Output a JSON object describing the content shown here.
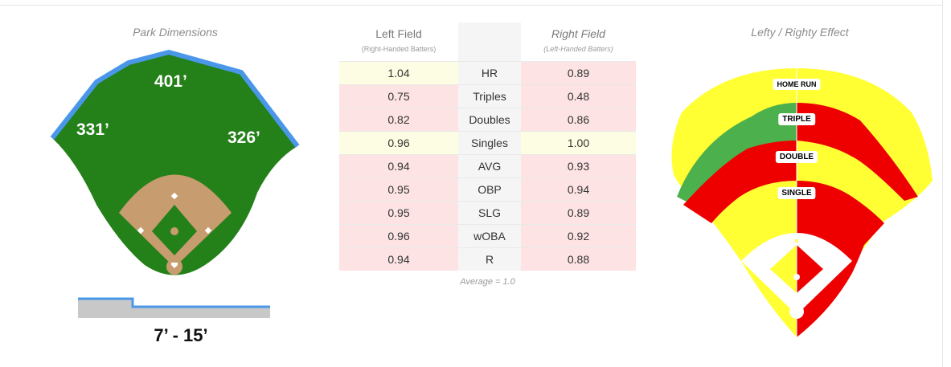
{
  "park": {
    "title": "Park Dimensions",
    "left_field": "331’",
    "center_field": "401’",
    "right_field": "326’",
    "wall_height": "7’ - 15’"
  },
  "table": {
    "left_header": "Left Field",
    "left_subheader": "(Right-Handed Batters)",
    "right_header": "Right Field",
    "right_subheader": "(Left-Handed Batters)",
    "rows": [
      {
        "left": "1.04",
        "stat": "HR",
        "right": "0.89",
        "left_tone": "yellow",
        "right_tone": "pink"
      },
      {
        "left": "0.75",
        "stat": "Triples",
        "right": "0.48",
        "left_tone": "pink",
        "right_tone": "pink"
      },
      {
        "left": "0.82",
        "stat": "Doubles",
        "right": "0.86",
        "left_tone": "pink",
        "right_tone": "pink"
      },
      {
        "left": "0.96",
        "stat": "Singles",
        "right": "1.00",
        "left_tone": "yellow",
        "right_tone": "yellow"
      },
      {
        "left": "0.94",
        "stat": "AVG",
        "right": "0.93",
        "left_tone": "pink",
        "right_tone": "pink"
      },
      {
        "left": "0.95",
        "stat": "OBP",
        "right": "0.94",
        "left_tone": "pink",
        "right_tone": "pink"
      },
      {
        "left": "0.95",
        "stat": "SLG",
        "right": "0.89",
        "left_tone": "pink",
        "right_tone": "pink"
      },
      {
        "left": "0.96",
        "stat": "wOBA",
        "right": "0.92",
        "left_tone": "pink",
        "right_tone": "pink"
      },
      {
        "left": "0.94",
        "stat": "R",
        "right": "0.88",
        "left_tone": "pink",
        "right_tone": "pink"
      }
    ],
    "footnote": "Average = 1.0"
  },
  "effect": {
    "title": "Lefty / Righty Effect",
    "labels": {
      "home_run": "HOME RUN",
      "triple": "TRIPLE",
      "double": "DOUBLE",
      "single": "SINGLE"
    }
  },
  "colors": {
    "grass": "#248019",
    "infield": "#c79c6e",
    "wall": "#4a97ea",
    "yellow": "#ffff33",
    "green": "#4cb04c",
    "red": "#ee0000",
    "table_pink": "#fde3e3",
    "table_yellow": "#fdfde3"
  }
}
